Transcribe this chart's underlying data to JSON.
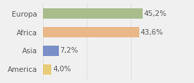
{
  "categories": [
    "Europa",
    "Africa",
    "Asia",
    "America"
  ],
  "values": [
    45.2,
    43.6,
    7.2,
    4.0
  ],
  "labels": [
    "45,2%",
    "43,6%",
    "7,2%",
    "4,0%"
  ],
  "bar_colors": [
    "#a8bc8c",
    "#e8b888",
    "#7b8ec8",
    "#e8cc78"
  ],
  "background_color": "#f0f0f0",
  "xlim": [
    0,
    58
  ],
  "bar_height": 0.55,
  "cat_fontsize": 7.5,
  "value_fontsize": 7.5,
  "label_color": "#555555",
  "grid_color": "#d8d8d8"
}
